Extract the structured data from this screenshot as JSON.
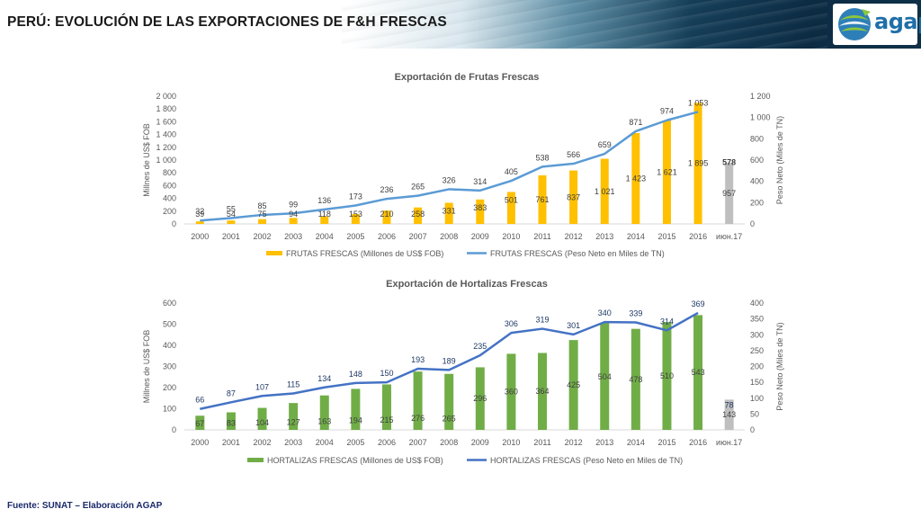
{
  "header": {
    "title": "PERÚ: EVOLUCIÓN DE LAS EXPORTACIONES DE F&H FRESCAS",
    "logo_text": "agap"
  },
  "footer": {
    "source": "Fuente: SUNAT – Elaboración AGAP"
  },
  "colors": {
    "fruit_bar": "#ffc000",
    "veg_bar": "#70ad47",
    "partial_bar": "#bfbfbf",
    "fruit_line": "#5b9bd5",
    "veg_line": "#4472c4"
  },
  "chart_data": [
    {
      "type": "bar",
      "title": "Exportación de Frutas Frescas",
      "ylabel": "Millnes de US$ FOB",
      "y2label": "Peso Neto (Miles de  TN)",
      "categories": [
        "2000",
        "2001",
        "2002",
        "2003",
        "2004",
        "2005",
        "2006",
        "2007",
        "2008",
        "2009",
        "2010",
        "2011",
        "2012",
        "2013",
        "2014",
        "2015",
        "2016",
        "июн.17"
      ],
      "ylim": [
        0,
        2000
      ],
      "yticks": [
        0,
        200,
        400,
        600,
        800,
        1000,
        1200,
        1400,
        1600,
        1800,
        2000
      ],
      "ytick_labels": [
        "0",
        "200",
        "400",
        "600",
        "800",
        "1 000",
        "1 200",
        "1 400",
        "1 600",
        "1 800",
        "2 000"
      ],
      "y2lim": [
        0,
        1200
      ],
      "y2ticks": [
        0,
        200,
        400,
        600,
        800,
        1000,
        1200
      ],
      "y2tick_labels": [
        "0",
        "200",
        "400",
        "600",
        "800",
        "1 000",
        "1 200"
      ],
      "series": [
        {
          "name": "FRUTAS FRESCAS (Millones de US$ FOB)",
          "kind": "bar",
          "axis": "left",
          "values": [
            39,
            54,
            75,
            94,
            118,
            153,
            210,
            258,
            331,
            383,
            501,
            761,
            837,
            1021,
            1423,
            1621,
            1895,
            957
          ],
          "labels": [
            "39",
            "54",
            "75",
            "94",
            "118",
            "153",
            "210",
            "258",
            "331",
            "383",
            "501",
            "761",
            "837",
            "1 021",
            "1 423",
            "1 621",
            "1 895",
            "957"
          ]
        },
        {
          "name": "FRUTAS FRESCAS (Peso Neto en Miles de TN)",
          "kind": "line",
          "axis": "right",
          "values": [
            32,
            55,
            85,
            99,
            136,
            173,
            236,
            265,
            326,
            314,
            405,
            538,
            566,
            659,
            871,
            974,
            1053,
            578
          ],
          "labels": [
            "32",
            "55",
            "85",
            "99",
            "136",
            "173",
            "236",
            "265",
            "326",
            "314",
            "405",
            "538",
            "566",
            "659",
            "871",
            "974",
            "1 053",
            "578"
          ]
        }
      ],
      "partial_last": true,
      "legend": "bottom"
    },
    {
      "type": "bar",
      "title": "Exportación de Hortalizas Frescas",
      "ylabel": "Millnes de US$ FOB",
      "y2label": "Peso Neto (Miles de  TN)",
      "categories": [
        "2000",
        "2001",
        "2002",
        "2003",
        "2004",
        "2005",
        "2006",
        "2007",
        "2008",
        "2009",
        "2010",
        "2011",
        "2012",
        "2013",
        "2014",
        "2015",
        "2016",
        "июн.17"
      ],
      "ylim": [
        0,
        600
      ],
      "yticks": [
        0,
        100,
        200,
        300,
        400,
        500,
        600
      ],
      "ytick_labels": [
        "0",
        "100",
        "200",
        "300",
        "400",
        "500",
        "600"
      ],
      "y2lim": [
        0,
        400
      ],
      "y2ticks": [
        0,
        50,
        100,
        150,
        200,
        250,
        300,
        350,
        400
      ],
      "y2tick_labels": [
        "0",
        "50",
        "100",
        "150",
        "200",
        "250",
        "300",
        "350",
        "400"
      ],
      "series": [
        {
          "name": "HORTALIZAS FRESCAS (Millones de US$ FOB)",
          "kind": "bar",
          "axis": "left",
          "values": [
            67,
            83,
            104,
            127,
            163,
            194,
            215,
            276,
            265,
            296,
            360,
            364,
            425,
            504,
            478,
            510,
            543,
            143
          ],
          "labels": [
            "67",
            "83",
            "104",
            "127",
            "163",
            "194",
            "215",
            "276",
            "265",
            "296",
            "360",
            "364",
            "425",
            "504",
            "478",
            "510",
            "543",
            "143"
          ]
        },
        {
          "name": "HORTALIZAS FRESCAS (Peso Neto en Miles de TN)",
          "kind": "line",
          "axis": "right",
          "values": [
            66,
            87,
            107,
            115,
            134,
            148,
            150,
            193,
            189,
            235,
            306,
            319,
            301,
            340,
            339,
            314,
            369,
            78
          ],
          "labels": [
            "66",
            "87",
            "107",
            "115",
            "134",
            "148",
            "150",
            "193",
            "189",
            "235",
            "306",
            "319",
            "301",
            "340",
            "339",
            "314",
            "369",
            "78"
          ]
        }
      ],
      "partial_last": true,
      "legend": "bottom"
    }
  ]
}
